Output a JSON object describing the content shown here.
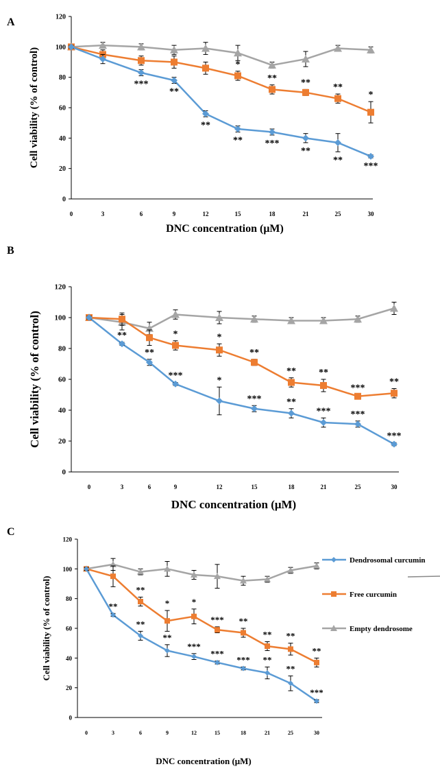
{
  "colors": {
    "blue": "#5b9bd5",
    "orange": "#ed7d31",
    "gray": "#a5a5a5",
    "axis": "#000000"
  },
  "legend": [
    {
      "name": "Dendrosomal curcumin",
      "color": "#5b9bd5",
      "marker": "diamond"
    },
    {
      "name": "Free curcumin",
      "color": "#ed7d31",
      "marker": "square"
    },
    {
      "name": "Empty dendrosome",
      "color": "#a5a5a5",
      "marker": "triangle"
    }
  ],
  "chart_data": [
    {
      "panel": "A",
      "type": "line",
      "xlabel": "DNC concentration (μM)",
      "ylabel": "Cell viability (% of control)",
      "categories": [
        "0",
        "3",
        "6",
        "9",
        "12",
        "15",
        "18",
        "21",
        "25",
        "30"
      ],
      "yticks": [
        "0",
        "20",
        "40",
        "60",
        "80",
        "100",
        "120"
      ],
      "ylim": [
        0,
        120
      ],
      "series": [
        {
          "name": "Dendrosomal curcumin",
          "values": [
            100,
            92,
            83,
            78,
            56,
            46,
            44,
            40,
            37,
            28
          ],
          "errors": [
            1,
            3,
            2,
            2,
            2,
            2,
            2,
            3,
            6,
            1
          ],
          "stars": [
            "",
            "",
            "***",
            "**",
            "**",
            "**",
            "***",
            "**",
            "**",
            "***"
          ]
        },
        {
          "name": "Free curcumin",
          "values": [
            100,
            95,
            91,
            90,
            86,
            81,
            72,
            70,
            66,
            57
          ],
          "errors": [
            1,
            3,
            3,
            4,
            4,
            3,
            3,
            2,
            3,
            7
          ],
          "stars": [
            "",
            "",
            "",
            "",
            "",
            "*",
            "**",
            "**",
            "**",
            "*"
          ]
        },
        {
          "name": "Empty dendrosome",
          "values": [
            100,
            101,
            100,
            98,
            99,
            96,
            88,
            92,
            99,
            98
          ],
          "errors": [
            1,
            2,
            2,
            3,
            4,
            5,
            2,
            5,
            2,
            2
          ],
          "stars": [
            "",
            "",
            "",
            "",
            "",
            "",
            "",
            "",
            "",
            ""
          ]
        }
      ]
    },
    {
      "panel": "B",
      "type": "line",
      "xlabel": "DNC concentration (μM)",
      "ylabel": "Cell viability (% of control)",
      "categories": [
        "0",
        "3",
        "6",
        "9",
        "12",
        "15",
        "18",
        "21",
        "25",
        "30"
      ],
      "yticks": [
        "0",
        "20",
        "40",
        "60",
        "80",
        "100",
        "120"
      ],
      "ylim": [
        0,
        120
      ],
      "series": [
        {
          "name": "Dendrosomal curcumin",
          "values": [
            100,
            83,
            71,
            57,
            46,
            41,
            38,
            32,
            31,
            18
          ],
          "errors": [
            1,
            1,
            2,
            1,
            9,
            2,
            3,
            3,
            2,
            1
          ],
          "stars": [
            "",
            "**",
            "**",
            "***",
            "*",
            "***",
            "**",
            "***",
            "***",
            "***"
          ]
        },
        {
          "name": "Free curcumin",
          "values": [
            100,
            99,
            87,
            82,
            79,
            71,
            58,
            56,
            49,
            51
          ],
          "errors": [
            1,
            4,
            5,
            3,
            4,
            2,
            3,
            4,
            1,
            3
          ],
          "stars": [
            "",
            "",
            "",
            "*",
            "*",
            "**",
            "**",
            "**",
            "***",
            "**"
          ]
        },
        {
          "name": "Empty dendrosome",
          "values": [
            100,
            97,
            93,
            102,
            100,
            99,
            98,
            98,
            99,
            106
          ],
          "errors": [
            1,
            5,
            4,
            3,
            4,
            2,
            2,
            2,
            2,
            4
          ],
          "stars": [
            "",
            "",
            "",
            "",
            "",
            "",
            "",
            "",
            "",
            ""
          ]
        }
      ]
    },
    {
      "panel": "C",
      "type": "line",
      "xlabel": "DNC concentration (μM)",
      "ylabel": "Cell viability (% of control)",
      "categories": [
        "0",
        "3",
        "6",
        "9",
        "12",
        "15",
        "18",
        "21",
        "25",
        "30"
      ],
      "yticks": [
        "0",
        "20",
        "40",
        "60",
        "80",
        "100",
        "120"
      ],
      "ylim": [
        0,
        120
      ],
      "series": [
        {
          "name": "Dendrosomal curcumin",
          "values": [
            100,
            69,
            55,
            45,
            41,
            37,
            33,
            30,
            23,
            11
          ],
          "errors": [
            1,
            1,
            3,
            4,
            2,
            1,
            1,
            4,
            5,
            1
          ],
          "stars": [
            "",
            "**",
            "**",
            "**",
            "***",
            "***",
            "***",
            "**",
            "**",
            "***"
          ]
        },
        {
          "name": "Free curcumin",
          "values": [
            100,
            95,
            78,
            65,
            68,
            59,
            57,
            48,
            46,
            37
          ],
          "errors": [
            1,
            7,
            3,
            7,
            5,
            2,
            3,
            3,
            4,
            3
          ],
          "stars": [
            "",
            "",
            "**",
            "*",
            "*",
            "***",
            "**",
            "**",
            "**",
            "**"
          ]
        },
        {
          "name": "Empty dendrosome",
          "values": [
            100,
            103,
            98,
            100,
            96,
            95,
            92,
            93,
            99,
            102
          ],
          "errors": [
            1,
            4,
            2,
            5,
            3,
            8,
            3,
            2,
            2,
            2
          ],
          "stars": [
            "",
            "",
            "",
            "",
            "",
            "",
            "",
            "",
            "",
            ""
          ]
        }
      ]
    }
  ]
}
